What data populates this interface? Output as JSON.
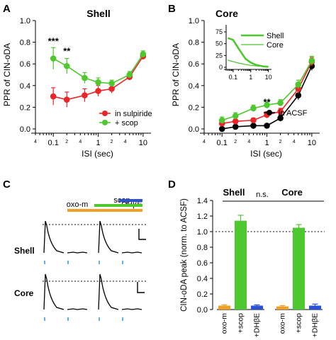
{
  "panels": {
    "A": {
      "letter": "A",
      "title": "Shell"
    },
    "B": {
      "letter": "B",
      "title": "Core"
    },
    "C": {
      "letter": "C"
    },
    "D": {
      "letter": "D"
    }
  },
  "chart_data": [
    {
      "id": "A",
      "type": "line",
      "title": "Shell",
      "xlabel": "ISI (sec)",
      "ylabel": "PPR of CIN-oDA",
      "xscale": "log",
      "xlim": [
        0.04,
        15
      ],
      "ylim": [
        0,
        1.0
      ],
      "yticks": [
        "0.0",
        "0.2",
        "0.4",
        "0.6",
        "0.8",
        "1.0"
      ],
      "xticks": [
        {
          "v": 0.1,
          "label": "0.1"
        },
        {
          "v": 1,
          "label": "1"
        },
        {
          "v": 10,
          "label": "10"
        }
      ],
      "minor_labels": [
        {
          "v": 0.04,
          "label": "4"
        },
        {
          "v": 0.2,
          "label": "2"
        },
        {
          "v": 0.4,
          "label": "4"
        },
        {
          "v": 2,
          "label": "2"
        },
        {
          "v": 4,
          "label": "4"
        }
      ],
      "legend": {
        "position": "bottom-right",
        "entries": [
          "in sulpiride",
          "+ scop"
        ]
      },
      "series": [
        {
          "name": "in sulpiride",
          "color": "#e8272a",
          "x": [
            0.1,
            0.2,
            0.5,
            1,
            2,
            5,
            10
          ],
          "y": [
            0.3,
            0.27,
            0.31,
            0.35,
            0.37,
            0.48,
            0.67
          ],
          "err": [
            0.08,
            0.07,
            0.06,
            0.05,
            0.04,
            0.03,
            0.03
          ]
        },
        {
          "name": "+ scop",
          "color": "#4ec82f",
          "x": [
            0.1,
            0.2,
            0.5,
            1,
            2,
            5,
            10
          ],
          "y": [
            0.65,
            0.58,
            0.47,
            0.43,
            0.42,
            0.5,
            0.69
          ],
          "err": [
            0.1,
            0.07,
            0.05,
            0.04,
            0.03,
            0.03,
            0.03
          ]
        }
      ],
      "annotations": [
        {
          "text": "***",
          "x": 0.1,
          "y": 0.78
        },
        {
          "text": "**",
          "x": 0.2,
          "y": 0.69
        }
      ]
    },
    {
      "id": "B",
      "type": "line",
      "title": "Core",
      "xlabel": "ISI (sec)",
      "ylabel": "PPR of CIN-oDA",
      "xscale": "log",
      "xlim": [
        0.04,
        15
      ],
      "ylim": [
        0,
        1.0
      ],
      "yticks": [
        "0.0",
        "0.2",
        "0.4",
        "0.6",
        "0.8",
        "1.0"
      ],
      "xticks": [
        {
          "v": 0.1,
          "label": "0.1"
        },
        {
          "v": 1,
          "label": "1"
        },
        {
          "v": 10,
          "label": "10"
        }
      ],
      "minor_labels": [
        {
          "v": 0.04,
          "label": "4"
        },
        {
          "v": 0.2,
          "label": "2"
        },
        {
          "v": 0.4,
          "label": "4"
        },
        {
          "v": 2,
          "label": "2"
        },
        {
          "v": 4,
          "label": "4"
        }
      ],
      "legend": {
        "position": "bottom-right",
        "entries": [
          "in ACSF"
        ]
      },
      "series": [
        {
          "name": "in ACSF",
          "color": "#000000",
          "x": [
            0.1,
            0.2,
            0.5,
            1,
            2,
            5,
            10
          ],
          "y": [
            0.0,
            0.02,
            0.03,
            0.03,
            0.1,
            0.31,
            0.58
          ],
          "err": [
            0.01,
            0.01,
            0.01,
            0.01,
            0.03,
            0.04,
            0.04
          ]
        },
        {
          "name": "",
          "color": "#e8272a",
          "x": [
            0.1,
            0.2,
            0.5,
            1,
            2,
            5,
            10
          ],
          "y": [
            0.05,
            0.07,
            0.08,
            0.13,
            0.16,
            0.37,
            0.62
          ],
          "err": [
            0.02,
            0.02,
            0.02,
            0.03,
            0.03,
            0.04,
            0.04
          ]
        },
        {
          "name": "",
          "color": "#4ec82f",
          "x": [
            0.1,
            0.2,
            0.5,
            1,
            2,
            5,
            10
          ],
          "y": [
            0.08,
            0.12,
            0.19,
            0.22,
            0.24,
            0.41,
            0.63
          ],
          "err": [
            0.03,
            0.03,
            0.03,
            0.03,
            0.03,
            0.04,
            0.04
          ]
        }
      ],
      "annotations": [
        {
          "text": "**",
          "x": 1,
          "y": 0.22,
          "color": "#e8272a"
        }
      ],
      "inset": {
        "type": "line",
        "xscale": "log",
        "yticks": [
          "0",
          "25",
          "50",
          "75"
        ],
        "ylim": [
          0,
          90
        ],
        "xticks": [
          {
            "v": 0.1,
            "label": "0.1"
          },
          {
            "v": 1,
            "label": "1"
          },
          {
            "v": 10,
            "label": "10"
          }
        ],
        "legend": {
          "position": "top-right",
          "entries": [
            "Shell",
            "Core"
          ]
        },
        "series": [
          {
            "name": "Shell",
            "color": "#4ec82f",
            "x": [
              0.05,
              0.1,
              0.2,
              0.5,
              1,
              2,
              5,
              10
            ],
            "y": [
              62,
              58,
              40,
              18,
              10,
              5,
              2,
              1
            ]
          },
          {
            "name": "Core",
            "color": "#4ec82f",
            "x": [
              0.05,
              0.1,
              0.2,
              0.5,
              1,
              2,
              5,
              10
            ],
            "y": [
              15,
              12,
              9,
              6,
              4,
              3,
              2,
              1
            ]
          }
        ]
      }
    },
    {
      "id": "D",
      "type": "bar",
      "ylabel": "CIN-oDA peak (norm. to ACSF)",
      "ylim": [
        0,
        1.4
      ],
      "yticks": [
        "0.0",
        "0.2",
        "0.4",
        "0.6",
        "0.8",
        "1.0",
        "1.2",
        "1.4"
      ],
      "groups": [
        "Shell",
        "Core"
      ],
      "categories": [
        "oxo-m",
        "+scop",
        "+DHβE"
      ],
      "significance": "n.s.",
      "reference_line": 1.0,
      "series": [
        {
          "group": "Shell",
          "values": [
            0.05,
            1.14,
            0.05
          ],
          "err": [
            0.01,
            0.07,
            0.01
          ]
        },
        {
          "group": "Core",
          "values": [
            0.04,
            1.05,
            0.05
          ],
          "err": [
            0.01,
            0.04,
            0.02
          ]
        }
      ],
      "colors": [
        "#f0a020",
        "#4ec82f",
        "#2a4fd8"
      ]
    }
  ],
  "panelC": {
    "labels": {
      "oxo": "oxo-m",
      "scop": "scop",
      "dhbe": "DHβE"
    },
    "rows": [
      "Shell",
      "Core"
    ],
    "colors": {
      "oxo": "#f0a020",
      "scop": "#4ec82f",
      "dhbe": "#2a4fd8",
      "stim": "#3aa0e0"
    }
  }
}
